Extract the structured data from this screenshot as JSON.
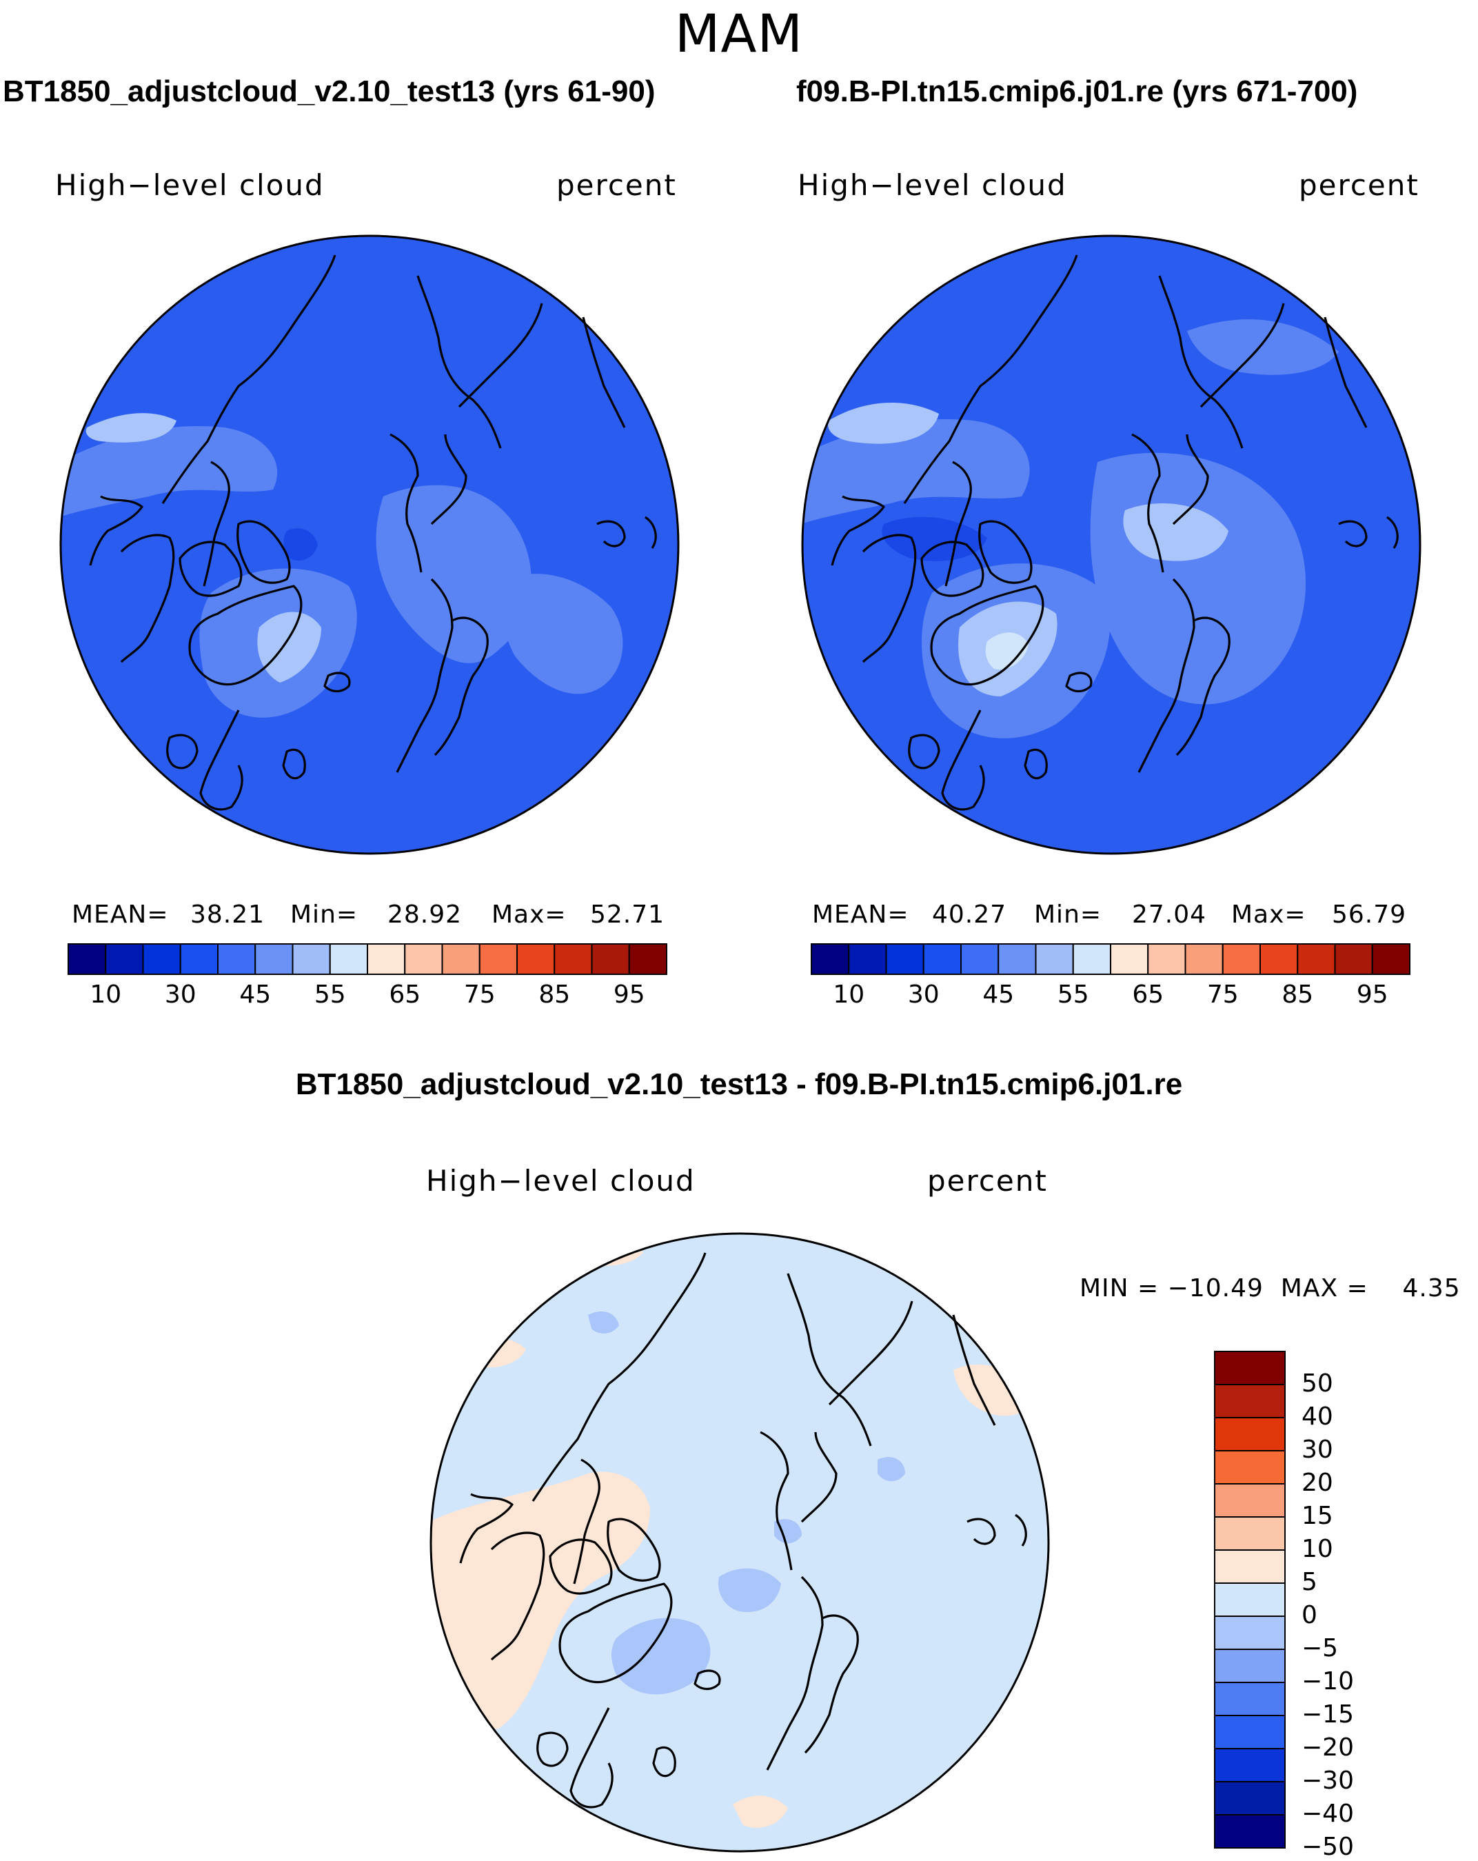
{
  "figure": {
    "season": "MAM"
  },
  "panels": [
    {
      "title": "BT1850_adjustcloud_v2.10_test13 (yrs 61-90)",
      "variable": "High−level cloud",
      "units": "percent",
      "stats": {
        "mean_label": "MEAN=",
        "mean": "38.21",
        "min_label": "Min=",
        "min": "28.92",
        "max_label": "Max=",
        "max": "52.71"
      }
    },
    {
      "title": "f09.B-PI.tn15.cmip6.j01.re (yrs 671-700)",
      "variable": "High−level cloud",
      "units": "percent",
      "stats": {
        "mean_label": "MEAN=",
        "mean": "40.27",
        "min_label": "Min=",
        "min": "27.04",
        "max_label": "Max=",
        "max": "56.79"
      }
    }
  ],
  "diff_panel": {
    "title": "BT1850_adjustcloud_v2.10_test13 - f09.B-PI.tn15.cmip6.j01.re",
    "variable": "High−level cloud",
    "units": "percent",
    "minmax_text": "MIN = −10.49  MAX =    4.35"
  },
  "colorbars": {
    "abs_colors": [
      "#000080",
      "#0019b3",
      "#0033d9",
      "#1a4ff0",
      "#3d6ef5",
      "#6b93f7",
      "#a0bcf9",
      "#d2e6fb",
      "#fde6d5",
      "#fcc4a8",
      "#f9a07a",
      "#f46d43",
      "#e8441e",
      "#cc2a0f",
      "#a8190a",
      "#800000"
    ],
    "abs_ticks": [
      "10",
      "30",
      "45",
      "55",
      "65",
      "75",
      "85",
      "95"
    ],
    "diff_colors": [
      "#800000",
      "#b3200c",
      "#e0380a",
      "#f56a35",
      "#f99f7c",
      "#fbc7a9",
      "#fde6d5",
      "#d2e6fb",
      "#a9c5fa",
      "#7ea3f7",
      "#4e7df3",
      "#2a5ff2",
      "#0a35d8",
      "#001ea8",
      "#000080"
    ],
    "diff_ticks": [
      "50",
      "40",
      "30",
      "20",
      "15",
      "10",
      "5",
      "0",
      "−5",
      "−10",
      "−15",
      "−20",
      "−30",
      "−40",
      "−50"
    ]
  },
  "map_colors": {
    "base": "#2a5cf0",
    "lighter": "#5a84f4",
    "lightest": "#a9c5fa",
    "palest": "#d2e6fb",
    "darker": "#1a48e6",
    "diff_base": "#d2e6fb",
    "diff_pos": "#fde6d5",
    "diff_neg": "#a9c5fa",
    "coast": "#000000"
  }
}
